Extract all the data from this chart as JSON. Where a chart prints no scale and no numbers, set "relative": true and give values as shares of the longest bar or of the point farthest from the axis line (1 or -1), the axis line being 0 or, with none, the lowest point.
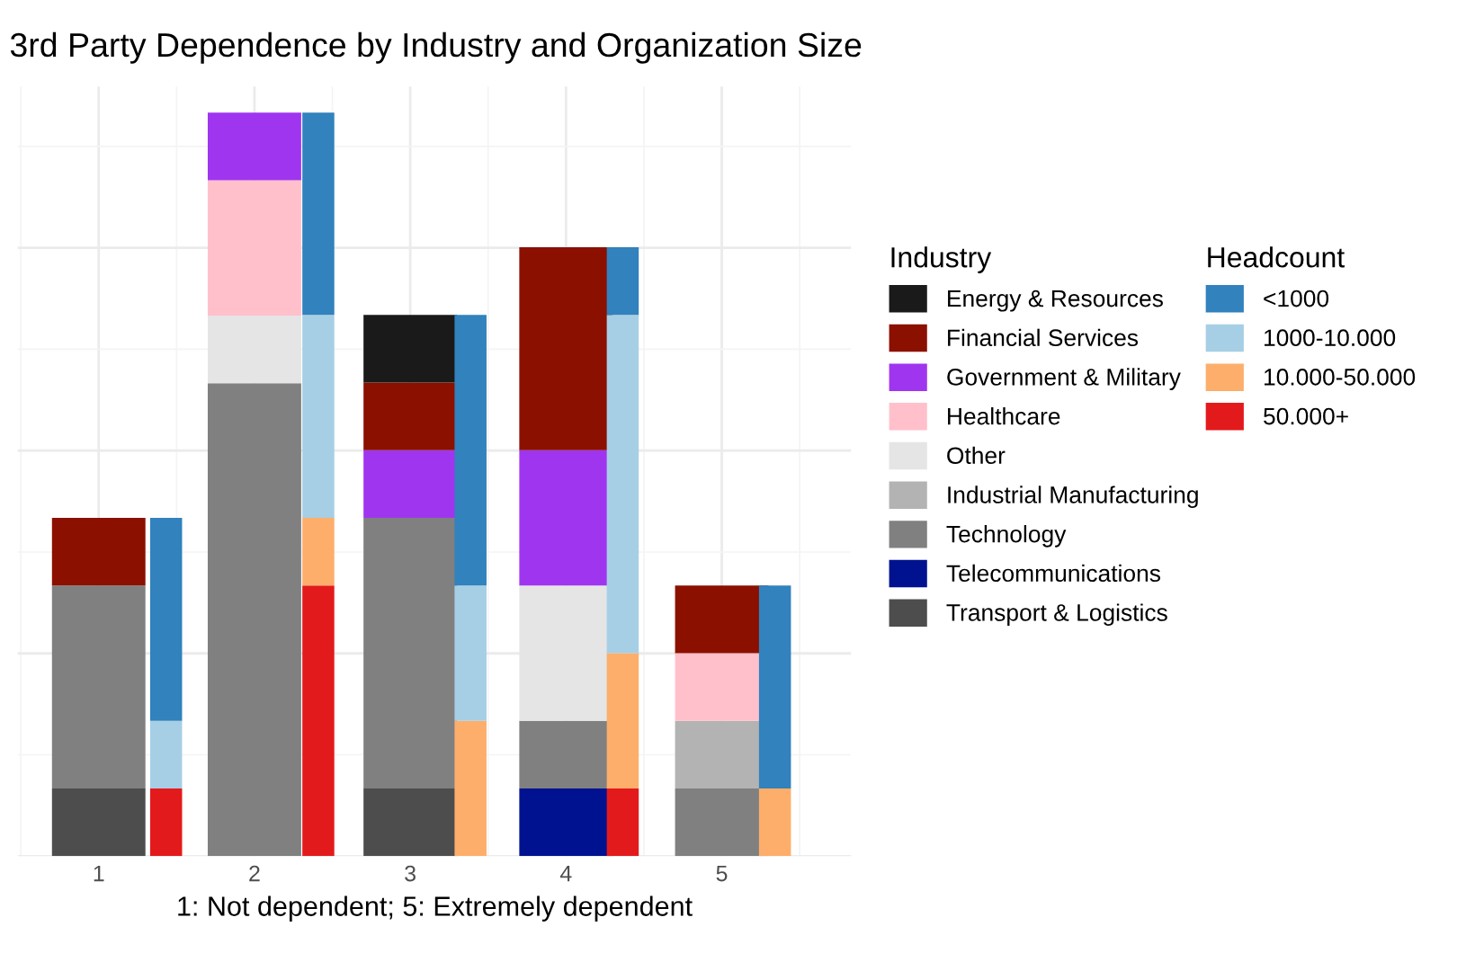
{
  "chart_data": [
    {
      "type": "bar",
      "title": "3rd Party Dependence by Industry and Organization Size",
      "xlabel": "1: Not dependent; 5: Extremely dependent",
      "categories": [
        "1",
        "2",
        "3",
        "4",
        "5"
      ],
      "stacked": true,
      "relative": true,
      "grid": true,
      "legend": "right",
      "legend_title": "Industry",
      "series": [
        {
          "name": "Transport & Logistics",
          "color": "#4d4d4d",
          "values": [
            0.091,
            null,
            0.091,
            null,
            null
          ]
        },
        {
          "name": "Telecommunications",
          "color": "#00128f",
          "values": [
            null,
            null,
            null,
            0.091,
            null
          ]
        },
        {
          "name": "Technology",
          "color": "#808080",
          "values": [
            0.273,
            0.636,
            0.364,
            0.091,
            0.091
          ]
        },
        {
          "name": "Industrial Manufacturing",
          "color": "#b3b3b3",
          "values": [
            null,
            null,
            null,
            null,
            0.091
          ]
        },
        {
          "name": "Other",
          "color": "#e5e5e5",
          "values": [
            null,
            0.091,
            null,
            0.182,
            null
          ]
        },
        {
          "name": "Healthcare",
          "color": "#ffc0cb",
          "values": [
            null,
            0.182,
            null,
            null,
            0.091
          ]
        },
        {
          "name": "Government & Military",
          "color": "#a035f0",
          "values": [
            null,
            0.091,
            0.091,
            0.182,
            null
          ]
        },
        {
          "name": "Financial Services",
          "color": "#8b1000",
          "values": [
            0.091,
            null,
            0.091,
            0.273,
            0.091
          ]
        },
        {
          "name": "Energy & Resources",
          "color": "#1a1a1a",
          "values": [
            null,
            null,
            0.091,
            null,
            null
          ]
        }
      ]
    },
    {
      "type": "bar",
      "categories": [
        null,
        null,
        null,
        null,
        null
      ],
      "stacked": true,
      "relative": true,
      "legend": "right",
      "legend_title": "Headcount",
      "series": [
        {
          "name": "50.000+",
          "color": "#e31a1c",
          "values": [
            0.091,
            0.364,
            null,
            0.091,
            null
          ]
        },
        {
          "name": "10.000-50.000",
          "color": "#fdae6b",
          "values": [
            null,
            0.091,
            0.182,
            0.182,
            0.091
          ]
        },
        {
          "name": "1000-10.000",
          "color": "#a6cfe6",
          "values": [
            0.091,
            0.273,
            0.182,
            0.455,
            null
          ]
        },
        {
          "name": "<1000",
          "color": "#3182bd",
          "values": [
            0.273,
            0.272,
            0.364,
            0.091,
            0.273
          ]
        }
      ]
    }
  ]
}
